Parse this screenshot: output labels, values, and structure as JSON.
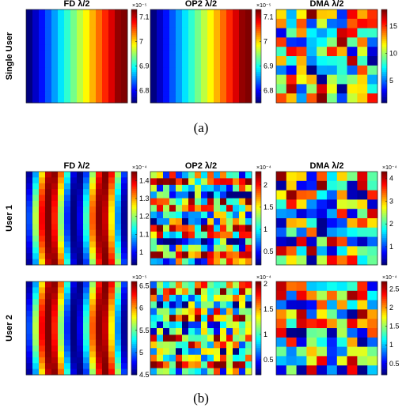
{
  "captions": {
    "a": "(a)",
    "b": "(b)"
  },
  "row_labels": {
    "single": "Single User",
    "user1": "User 1",
    "user2": "User 2"
  },
  "chart_data": [
    {
      "type": "heatmap",
      "title": "FD λ/2",
      "row": "Single User",
      "pattern": "vertical_gradient",
      "colorbar": {
        "exponent": "×10⁻⁵",
        "ticks": [
          "6.8",
          "6.9",
          "7",
          "7.1"
        ],
        "range": [
          6.75,
          7.13
        ]
      }
    },
    {
      "type": "heatmap",
      "title": "OP2 λ/2",
      "row": "Single User",
      "pattern": "vertical_gradient",
      "colorbar": {
        "exponent": "×10⁻⁵",
        "ticks": [
          "6.8",
          "6.9",
          "7",
          "7.1"
        ],
        "range": [
          6.75,
          7.13
        ]
      }
    },
    {
      "type": "heatmap",
      "title": "DMA λ/2",
      "row": "Single User",
      "pattern": "random",
      "colorbar": {
        "exponent": "",
        "ticks": [
          "5",
          "10",
          "15"
        ],
        "range": [
          1,
          18
        ]
      }
    },
    {
      "type": "heatmap",
      "title": "FD λ/2",
      "row": "User 1",
      "pattern": "vertical_bands",
      "colorbar": {
        "exponent": "×10⁻⁴",
        "ticks": [
          "1",
          "1.1",
          "1.2",
          "1.3",
          "1.4"
        ],
        "range": [
          0.93,
          1.45
        ]
      }
    },
    {
      "type": "heatmap",
      "title": "OP2 λ/2",
      "row": "User 1",
      "pattern": "horizontal_random",
      "colorbar": {
        "exponent": "×10⁻⁴",
        "ticks": [
          "0.5",
          "1",
          "1.5",
          "2"
        ],
        "range": [
          0.2,
          2.3
        ]
      }
    },
    {
      "type": "heatmap",
      "title": "DMA λ/2",
      "row": "User 1",
      "pattern": "random",
      "colorbar": {
        "exponent": "×10⁻⁴",
        "ticks": [
          "1",
          "2",
          "3",
          "4"
        ],
        "range": [
          0.2,
          4.3
        ]
      }
    },
    {
      "type": "heatmap",
      "title": "",
      "row": "User 2",
      "pattern": "vertical_bands",
      "colorbar": {
        "exponent": "×10⁻⁵",
        "ticks": [
          "4.5",
          "5",
          "5.5",
          "6",
          "6.5"
        ],
        "range": [
          4.5,
          6.6
        ]
      }
    },
    {
      "type": "heatmap",
      "title": "",
      "row": "User 2",
      "pattern": "horizontal_random",
      "colorbar": {
        "exponent": "×10⁻⁴",
        "ticks": [
          "0.5",
          "1",
          "1.5",
          "2"
        ],
        "range": [
          0.2,
          2.05
        ]
      }
    },
    {
      "type": "heatmap",
      "title": "",
      "row": "User 2",
      "pattern": "random",
      "colorbar": {
        "exponent": "×10⁻⁴",
        "ticks": [
          "0.5",
          "1",
          "1.5",
          "2",
          "2.5"
        ],
        "range": [
          0.2,
          2.7
        ]
      }
    }
  ]
}
